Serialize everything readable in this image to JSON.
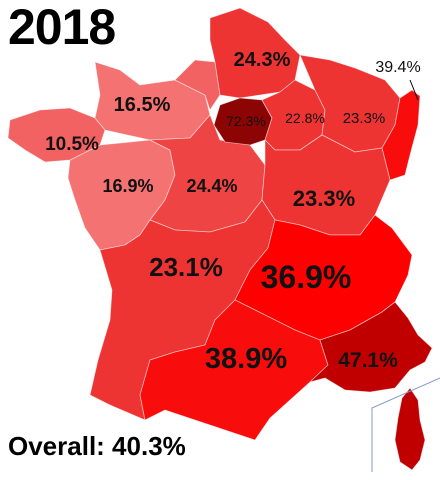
{
  "title": "2018",
  "overall": "Overall: 40.3%",
  "colors": {
    "very_light": "#f26262",
    "light": "#f47272",
    "medium_light": "#ef4444",
    "medium": "#ee3333",
    "strong": "#f80c0c",
    "vivid": "#ff0000",
    "dark": "#c00000",
    "darkest": "#8c0404"
  },
  "regions": {
    "bretagne": "10.5%",
    "basse_normandie": "16.5%",
    "pays_de_la_loire": "16.9%",
    "centre": "24.4%",
    "picardie": "24.3%",
    "ile_de_france": "72.3%",
    "champagne": "22.8%",
    "lorraine": "23.3%",
    "alsace": "39.4%",
    "bourgogne_fc": "23.3%",
    "sud_ouest": "23.1%",
    "auvergne_rhone_alpes": "36.9%",
    "occitanie": "38.9%",
    "paca": "47.1%"
  }
}
